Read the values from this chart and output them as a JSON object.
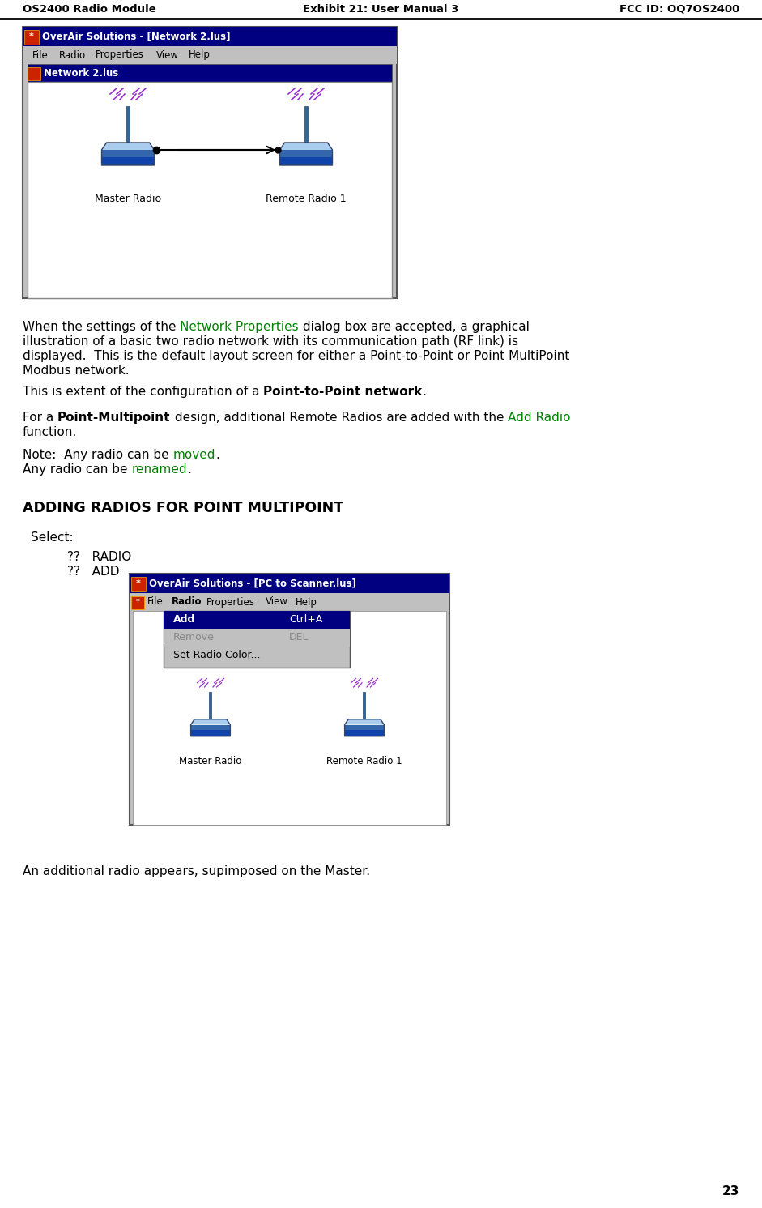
{
  "header_left": "OS2400 Radio Module",
  "header_center": "Exhibit 21: User Manual 3",
  "header_right": "FCC ID: OQ7OS2400",
  "page_number": "23",
  "background_color": "#ffffff",
  "green_color": "#008000",
  "dark_blue": "#000080",
  "gray_bg": "#c0c0c0",
  "ss1_title": "OverAir Solutions - [Network 2.lus]",
  "ss1_menu": "File   Radio   Properties   View   Help",
  "ss1_sub": "Network 2.lus",
  "ss1_label_left": "Master Radio",
  "ss1_label_right": "Remote Radio 1",
  "ss2_title": "OverAir Solutions - [PC to Scanner.lus]",
  "ss2_menu_left": "✔  File   Radio   Properties   View   Help",
  "ss2_label_left": "Master Radio",
  "ss2_label_right": "Remote Radio 1"
}
